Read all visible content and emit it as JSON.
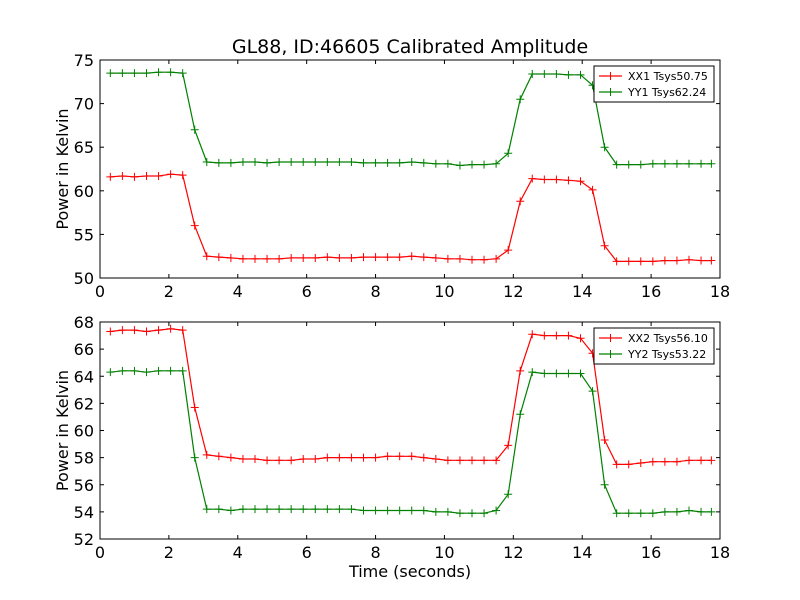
{
  "title": "GL88, ID:46605 Calibrated Amplitude",
  "colors": {
    "xx": "#ff0000",
    "yy": "#008000"
  },
  "chart_data": [
    {
      "type": "line",
      "title": "GL88, ID:46605 Calibrated Amplitude",
      "xlabel": "",
      "ylabel": "Power in Kelvin",
      "xlim": [
        0,
        18
      ],
      "ylim": [
        50,
        75
      ],
      "xticks": [
        0,
        2,
        4,
        6,
        8,
        10,
        12,
        14,
        16,
        18
      ],
      "yticks": [
        50,
        55,
        60,
        65,
        70,
        75
      ],
      "grid": false,
      "legend_position": "top-right",
      "x": [
        0.3,
        0.65,
        1.0,
        1.35,
        1.7,
        2.05,
        2.4,
        2.75,
        3.1,
        3.45,
        3.8,
        4.15,
        4.5,
        4.85,
        5.2,
        5.55,
        5.9,
        6.25,
        6.6,
        6.95,
        7.3,
        7.65,
        8.0,
        8.35,
        8.7,
        9.05,
        9.4,
        9.75,
        10.1,
        10.45,
        10.8,
        11.15,
        11.5,
        11.85,
        12.2,
        12.55,
        12.9,
        13.25,
        13.6,
        13.95,
        14.3,
        14.65,
        15.0,
        15.35,
        15.7,
        16.05,
        16.4,
        16.75,
        17.1,
        17.45,
        17.75
      ],
      "series": [
        {
          "name": "XX1 Tsys50.75",
          "color": "#ff0000",
          "values": [
            61.6,
            61.7,
            61.6,
            61.7,
            61.7,
            61.9,
            61.8,
            56.0,
            52.5,
            52.4,
            52.3,
            52.2,
            52.2,
            52.2,
            52.2,
            52.3,
            52.3,
            52.3,
            52.4,
            52.3,
            52.3,
            52.4,
            52.4,
            52.4,
            52.4,
            52.5,
            52.4,
            52.3,
            52.2,
            52.2,
            52.1,
            52.1,
            52.2,
            53.2,
            58.8,
            61.4,
            61.3,
            61.3,
            61.2,
            61.1,
            60.1,
            53.7,
            51.9,
            51.9,
            51.9,
            51.9,
            52.0,
            52.0,
            52.1,
            52.0,
            52.0
          ]
        },
        {
          "name": "YY1 Tsys62.24",
          "color": "#008000",
          "values": [
            73.5,
            73.5,
            73.5,
            73.5,
            73.6,
            73.6,
            73.5,
            67.0,
            63.3,
            63.2,
            63.2,
            63.3,
            63.3,
            63.2,
            63.3,
            63.3,
            63.3,
            63.3,
            63.3,
            63.3,
            63.3,
            63.2,
            63.2,
            63.2,
            63.2,
            63.3,
            63.2,
            63.1,
            63.1,
            62.9,
            63.0,
            63.0,
            63.1,
            64.3,
            70.5,
            73.4,
            73.4,
            73.4,
            73.3,
            73.3,
            72.1,
            65.0,
            63.0,
            63.0,
            63.0,
            63.1,
            63.1,
            63.1,
            63.1,
            63.1,
            63.1
          ]
        }
      ]
    },
    {
      "type": "line",
      "title": "",
      "xlabel": "Time (seconds)",
      "ylabel": "Power in Kelvin",
      "xlim": [
        0,
        18
      ],
      "ylim": [
        52,
        68
      ],
      "xticks": [
        0,
        2,
        4,
        6,
        8,
        10,
        12,
        14,
        16,
        18
      ],
      "yticks": [
        52,
        54,
        56,
        58,
        60,
        62,
        64,
        66,
        68
      ],
      "grid": false,
      "legend_position": "top-right",
      "x": [
        0.3,
        0.65,
        1.0,
        1.35,
        1.7,
        2.05,
        2.4,
        2.75,
        3.1,
        3.45,
        3.8,
        4.15,
        4.5,
        4.85,
        5.2,
        5.55,
        5.9,
        6.25,
        6.6,
        6.95,
        7.3,
        7.65,
        8.0,
        8.35,
        8.7,
        9.05,
        9.4,
        9.75,
        10.1,
        10.45,
        10.8,
        11.15,
        11.5,
        11.85,
        12.2,
        12.55,
        12.9,
        13.25,
        13.6,
        13.95,
        14.3,
        14.65,
        15.0,
        15.35,
        15.7,
        16.05,
        16.4,
        16.75,
        17.1,
        17.45,
        17.75
      ],
      "series": [
        {
          "name": "XX2 Tsys56.10",
          "color": "#ff0000",
          "values": [
            67.3,
            67.4,
            67.4,
            67.3,
            67.4,
            67.5,
            67.4,
            61.7,
            58.2,
            58.1,
            58.0,
            57.9,
            57.9,
            57.8,
            57.8,
            57.8,
            57.9,
            57.9,
            58.0,
            58.0,
            58.0,
            58.0,
            58.0,
            58.1,
            58.1,
            58.1,
            58.0,
            57.9,
            57.8,
            57.8,
            57.8,
            57.8,
            57.8,
            58.9,
            64.4,
            67.1,
            67.0,
            67.0,
            67.0,
            66.8,
            65.7,
            59.3,
            57.5,
            57.5,
            57.6,
            57.7,
            57.7,
            57.7,
            57.8,
            57.8,
            57.8
          ]
        },
        {
          "name": "YY2 Tsys53.22",
          "color": "#008000",
          "values": [
            64.3,
            64.4,
            64.4,
            64.3,
            64.4,
            64.4,
            64.4,
            58.0,
            54.2,
            54.2,
            54.1,
            54.2,
            54.2,
            54.2,
            54.2,
            54.2,
            54.2,
            54.2,
            54.2,
            54.2,
            54.2,
            54.1,
            54.1,
            54.1,
            54.1,
            54.1,
            54.1,
            54.0,
            54.0,
            53.9,
            53.9,
            53.9,
            54.1,
            55.3,
            61.2,
            64.3,
            64.2,
            64.2,
            64.2,
            64.2,
            62.9,
            56.0,
            53.9,
            53.9,
            53.9,
            53.9,
            54.0,
            54.0,
            54.1,
            54.0,
            54.0
          ]
        }
      ]
    }
  ]
}
